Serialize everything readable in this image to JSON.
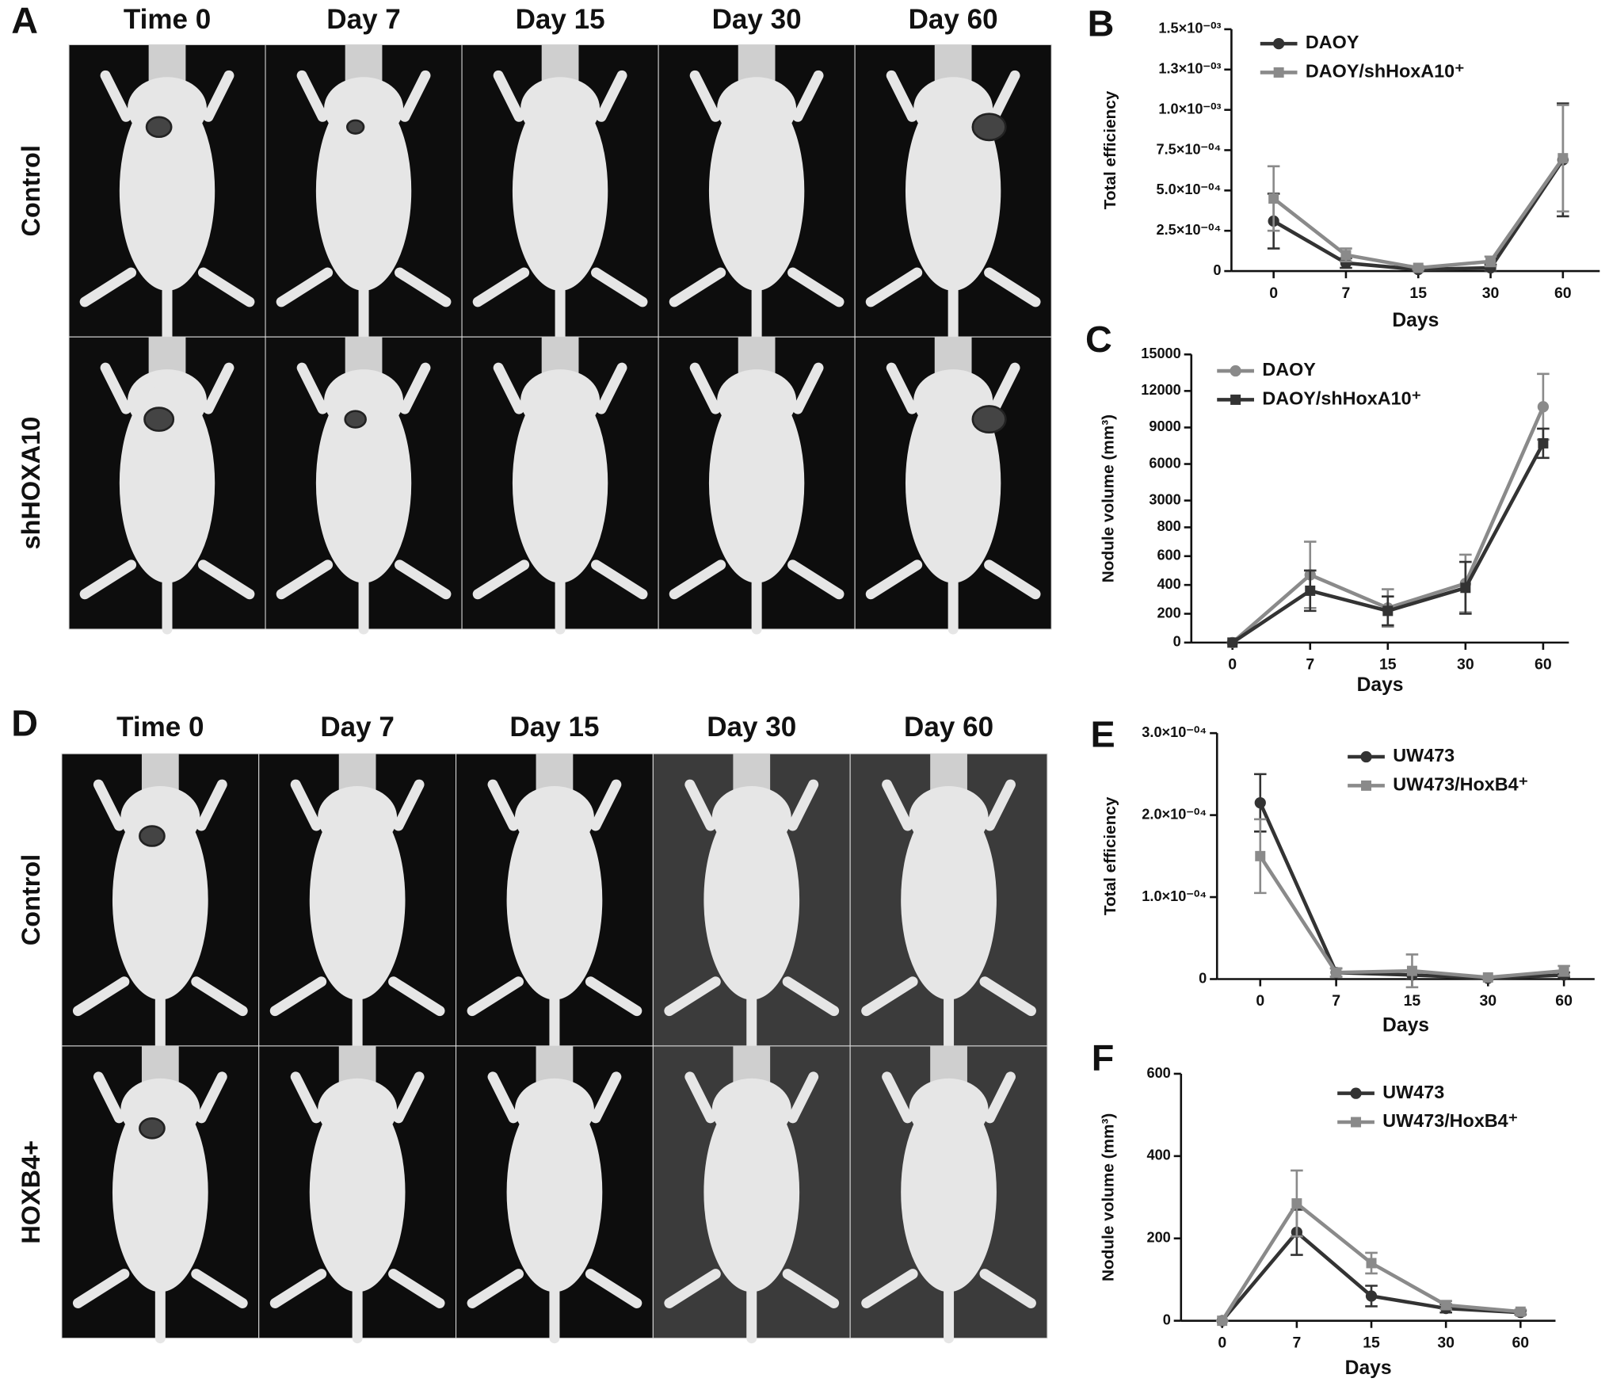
{
  "panels": [
    {
      "letter": "A",
      "columns": [
        "Time 0",
        "Day 7",
        "Day 15",
        "Day 30",
        "Day 60"
      ],
      "rows": [
        "Control",
        "shHOXA10"
      ]
    },
    {
      "letter": "D",
      "columns": [
        "Time 0",
        "Day 7",
        "Day 15",
        "Day 30",
        "Day 60"
      ],
      "rows": [
        "Control",
        "HOXB4+"
      ]
    }
  ],
  "chart_data": [
    {
      "type": "line",
      "panel": "B",
      "xlabel": "Days",
      "ylabel": "Total efficiency",
      "categories": [
        "0",
        "7",
        "15",
        "30",
        "60"
      ],
      "ylim": [
        0,
        0.0015
      ],
      "yticks": [
        0,
        {
          "value": 0.00025,
          "label": "2.5×10⁻⁰⁴"
        },
        {
          "value": 0.0005,
          "label": "5.0×10⁻⁰⁴"
        },
        {
          "value": 0.00075,
          "label": "7.5×10⁻⁰⁴"
        },
        {
          "value": 0.001,
          "label": "1.0×10⁻⁰³"
        },
        {
          "value": 0.00125,
          "label": "1.3×10⁻⁰³"
        },
        {
          "value": 0.0015,
          "label": "1.5×10⁻⁰³"
        }
      ],
      "series": [
        {
          "name": "DAOY",
          "color": "#333333",
          "marker": "circle",
          "values": [
            0.00031,
            5e-05,
            1e-05,
            2e-05,
            0.00069
          ],
          "errors": [
            0.00017,
            3e-05,
            1e-05,
            2e-05,
            0.00035
          ]
        },
        {
          "name": "DAOY/shHoxA10⁺",
          "color": "#8a8a8a",
          "marker": "square",
          "values": [
            0.00045,
            0.0001,
            2e-05,
            6e-05,
            0.0007
          ],
          "errors": [
            0.0002,
            4e-05,
            1e-05,
            3e-05,
            0.00033
          ]
        }
      ]
    },
    {
      "type": "line",
      "panel": "C",
      "xlabel": "Days",
      "ylabel": "Nodule volume (mm³)",
      "categories": [
        "0",
        "7",
        "15",
        "30",
        "60"
      ],
      "ylim": [
        0,
        15000
      ],
      "ybreak": 800,
      "yticks": [
        0,
        200,
        400,
        600,
        800,
        3000,
        6000,
        9000,
        12000,
        15000
      ],
      "series": [
        {
          "name": "DAOY",
          "color": "#8a8a8a",
          "marker": "circle",
          "values": [
            0,
            470,
            240,
            410,
            10700
          ],
          "errors": [
            0,
            230,
            130,
            200,
            2700
          ]
        },
        {
          "name": "DAOY/shHoxA10⁺",
          "color": "#333333",
          "marker": "square",
          "values": [
            0,
            360,
            220,
            380,
            7700
          ],
          "errors": [
            0,
            140,
            100,
            180,
            1200
          ]
        }
      ]
    },
    {
      "type": "line",
      "panel": "E",
      "xlabel": "Days",
      "ylabel": "Total efficiency",
      "categories": [
        "0",
        "7",
        "15",
        "30",
        "60"
      ],
      "ylim": [
        0,
        0.0003
      ],
      "yticks": [
        0,
        {
          "value": 0.0001,
          "label": "1.0×10⁻⁰⁴"
        },
        {
          "value": 0.0002,
          "label": "2.0×10⁻⁰⁴"
        },
        {
          "value": 0.0003,
          "label": "3.0×10⁻⁰⁴"
        }
      ],
      "series": [
        {
          "name": "UW473",
          "color": "#333333",
          "marker": "circle",
          "values": [
            0.000215,
            8e-06,
            5e-06,
            1e-06,
            5e-06
          ],
          "errors": [
            3.5e-05,
            5e-06,
            5e-06,
            1e-06,
            3e-06
          ]
        },
        {
          "name": "UW473/HoxB4⁺",
          "color": "#8a8a8a",
          "marker": "square",
          "values": [
            0.00015,
            8e-06,
            1e-05,
            2e-06,
            1e-05
          ],
          "errors": [
            4.5e-05,
            5e-06,
            2e-05,
            1e-06,
            6e-06
          ]
        }
      ]
    },
    {
      "type": "line",
      "panel": "F",
      "xlabel": "Days",
      "ylabel": "Nodule volume (mm³)",
      "categories": [
        "0",
        "7",
        "15",
        "30",
        "60"
      ],
      "ylim": [
        0,
        600
      ],
      "yticks": [
        0,
        200,
        400,
        600
      ],
      "series": [
        {
          "name": "UW473",
          "color": "#333333",
          "marker": "circle",
          "values": [
            0,
            215,
            60,
            30,
            20
          ],
          "errors": [
            0,
            55,
            25,
            10,
            5
          ]
        },
        {
          "name": "UW473/HoxB4⁺",
          "color": "#8a8a8a",
          "marker": "square",
          "values": [
            0,
            285,
            140,
            38,
            22
          ],
          "errors": [
            0,
            80,
            25,
            10,
            5
          ]
        }
      ]
    }
  ]
}
